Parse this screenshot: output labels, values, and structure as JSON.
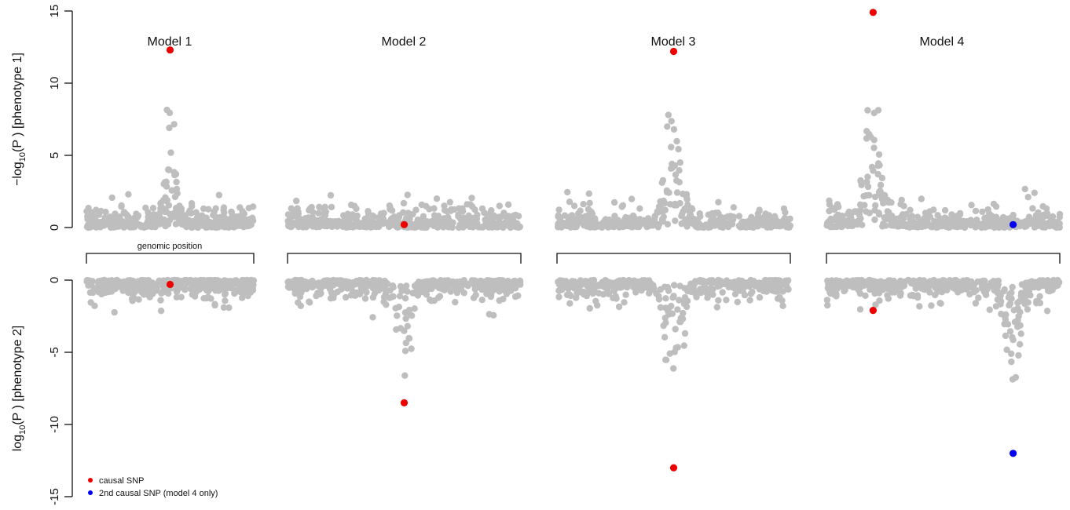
{
  "chart_data": {
    "type": "scatter",
    "description_free": true,
    "top_axis": {
      "label_prefix": "−log",
      "label_sub": "10",
      "label_suffix": "(P ) [phenotype 1]",
      "ylim": [
        0,
        15
      ],
      "ticks": [
        "0",
        "5",
        "10",
        "15"
      ]
    },
    "bottom_axis": {
      "label_prefix": "log",
      "label_sub": "10",
      "label_suffix": "(P ) [phenotype 2]",
      "ylim": [
        -15,
        0
      ],
      "ticks": [
        "0",
        "-5",
        "-10",
        "-15"
      ]
    },
    "position_label": "genomic position",
    "colors": {
      "background_snp": "#bebebe",
      "causal": "#ee0000",
      "second_causal": "#0000ee"
    },
    "legend": [
      {
        "label": "causal SNP",
        "color": "#ee0000"
      },
      {
        "label": "2nd causal SNP (model 4 only)",
        "color": "#0000ee"
      }
    ],
    "panels": [
      {
        "title": "Model 1",
        "top": {
          "peak": 0.5,
          "height": 8.8,
          "width": 0.05,
          "noise": 2.6
        },
        "bottom": {
          "peak": null,
          "height": 0,
          "width": 0.05,
          "noise": 2.4
        },
        "causal": {
          "x": 0.5,
          "top": 12.3,
          "bottom": -0.3
        },
        "second_causal": null
      },
      {
        "title": "Model 2",
        "top": {
          "peak": null,
          "height": 0,
          "width": 0.05,
          "noise": 2.4
        },
        "bottom": {
          "peak": 0.5,
          "height": 7.0,
          "width": 0.05,
          "noise": 2.6
        },
        "causal": {
          "x": 0.5,
          "top": 0.2,
          "bottom": -8.5
        },
        "second_causal": null
      },
      {
        "title": "Model 3",
        "top": {
          "peak": 0.5,
          "height": 9.8,
          "width": 0.05,
          "noise": 2.5
        },
        "bottom": {
          "peak": 0.5,
          "height": 9.8,
          "width": 0.05,
          "noise": 2.6
        },
        "causal": {
          "x": 0.5,
          "top": 12.2,
          "bottom": -13.0
        },
        "second_causal": null
      },
      {
        "title": "Model 4",
        "top": {
          "peak": 0.2,
          "height": 10.5,
          "width": 0.05,
          "noise": 3.4
        },
        "bottom": {
          "peak": 0.8,
          "height": 8.7,
          "width": 0.05,
          "noise": 2.4
        },
        "causal": {
          "x": 0.2,
          "top": 14.9,
          "bottom": -2.1
        },
        "second_causal": {
          "x": 0.8,
          "top": 0.2,
          "bottom": -12.0
        }
      }
    ]
  }
}
